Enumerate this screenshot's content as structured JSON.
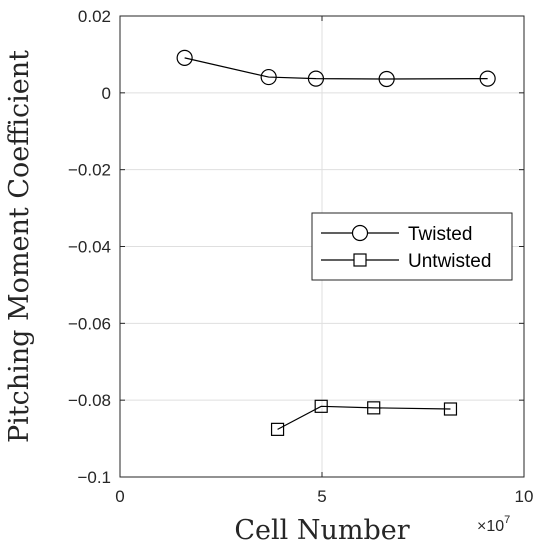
{
  "chart_data": {
    "type": "line",
    "title": "",
    "xlabel": "Cell Number",
    "ylabel": "Pitching Moment Coefficient",
    "x_exponent_label": "×10",
    "x_exponent_power": "7",
    "xlim": [
      0,
      100000000
    ],
    "ylim": [
      -0.1,
      0.02
    ],
    "xticks": [
      0,
      50000000,
      100000000
    ],
    "xtick_labels": [
      "0",
      "5",
      "10"
    ],
    "yticks": [
      0.02,
      0,
      -0.02,
      -0.04,
      -0.06,
      -0.08,
      -0.1
    ],
    "ytick_labels": [
      "0.02",
      "0",
      "−0.02",
      "−0.04",
      "−0.06",
      "−0.08",
      "−0.1"
    ],
    "grid": true,
    "legend_position": "right-middle",
    "series": [
      {
        "name": "Twisted",
        "marker": "circle",
        "color": "#000000",
        "x": [
          16000000,
          36800000,
          48500000,
          66000000,
          91000000
        ],
        "y": [
          0.0091,
          0.0041,
          0.0037,
          0.0036,
          0.0037
        ]
      },
      {
        "name": "Untwisted",
        "marker": "square",
        "color": "#000000",
        "x": [
          39000000,
          49800000,
          62800000,
          81800000
        ],
        "y": [
          -0.0876,
          -0.0816,
          -0.082,
          -0.0823
        ]
      }
    ]
  }
}
